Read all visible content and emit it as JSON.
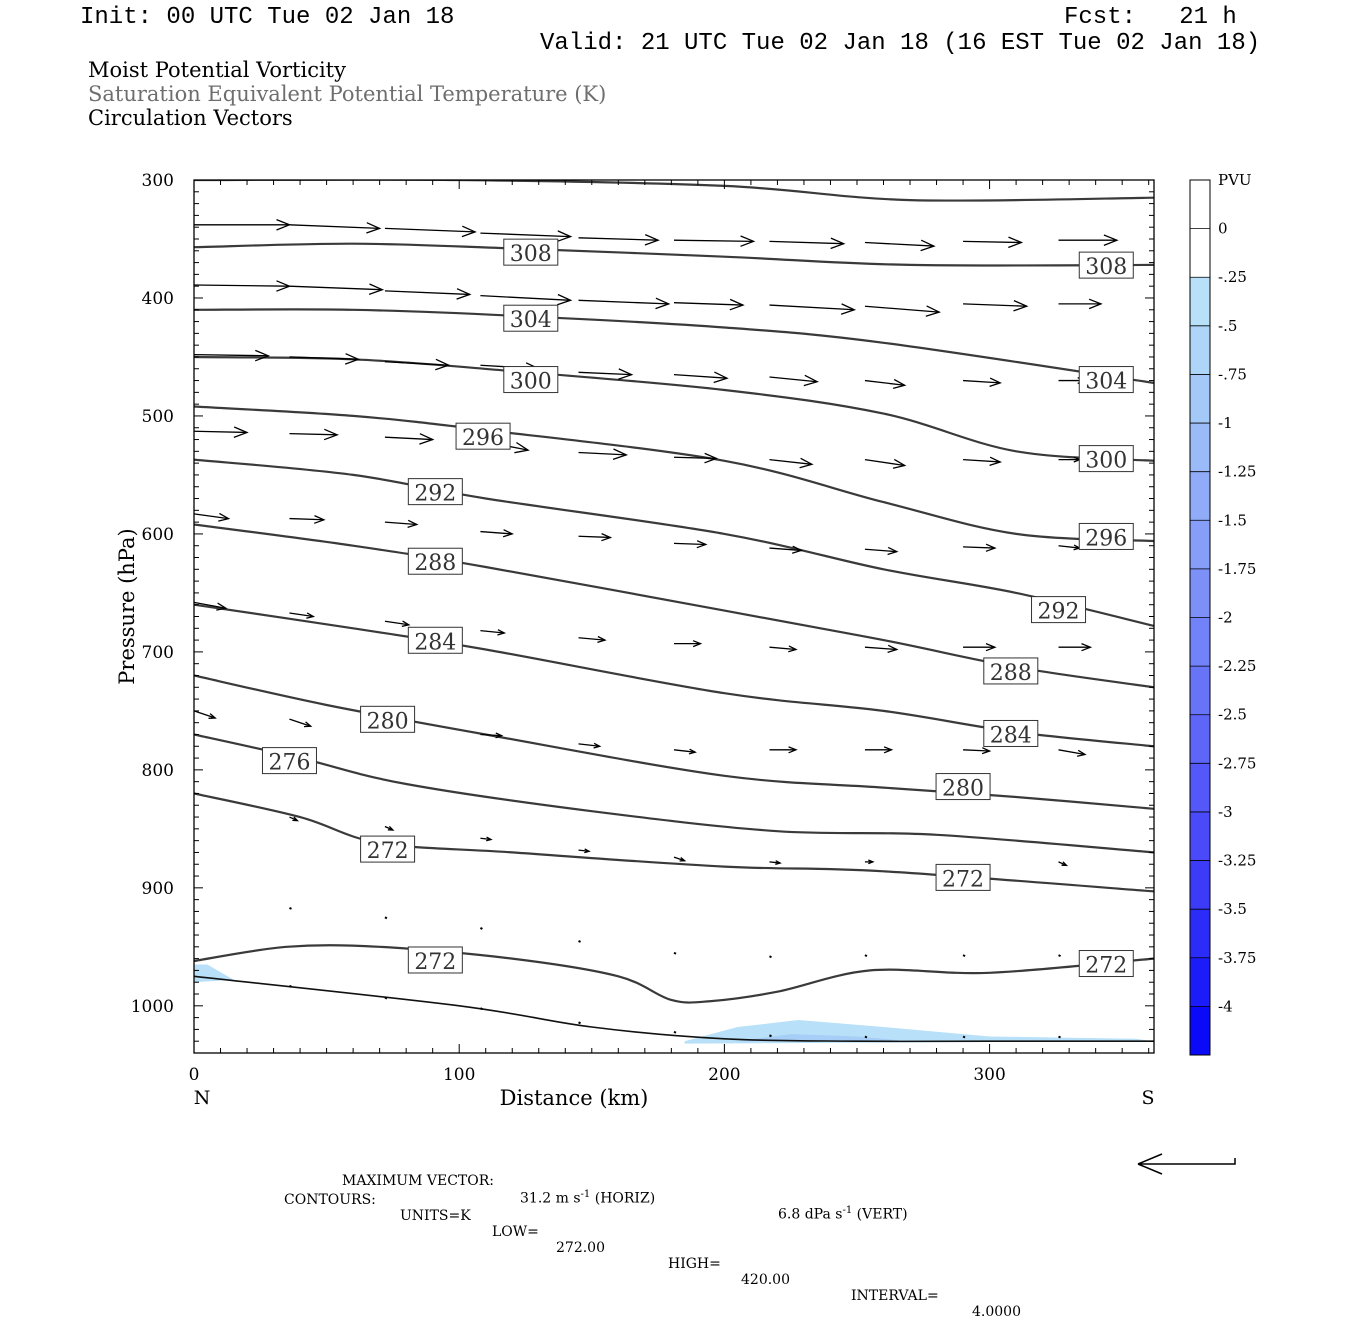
{
  "header": {
    "init": "Init: 00 UTC Tue 02 Jan 18",
    "fcst": "Fcst:   21 h",
    "valid": "Valid: 21 UTC Tue 02 Jan 18 (16 EST Tue 02 Jan 18)"
  },
  "subtitles": [
    "Moist Potential Vorticity",
    "Saturation Equivalent Potential Temperature (K)",
    "Circulation Vectors"
  ],
  "colors": {
    "contour": "#3a3a3a",
    "vector": "#000000",
    "pv_light": "#b8e0f8",
    "pv_mid": "#9ed0f4"
  },
  "chart_data": {
    "type": "cross-section",
    "xlabel": "Distance (km)",
    "ylabel": "Pressure (hPa)",
    "xlim": [
      0,
      362
    ],
    "ylim": [
      1040,
      300
    ],
    "x_ticks": [
      "0",
      "100",
      "200",
      "300"
    ],
    "x_tick_values": [
      0,
      100,
      200,
      300
    ],
    "y_ticks": [
      "300",
      "400",
      "500",
      "600",
      "700",
      "800",
      "900",
      "1000"
    ],
    "y_tick_values": [
      300,
      400,
      500,
      600,
      700,
      800,
      900,
      1000
    ],
    "left_end_label": "N",
    "right_end_label": "S",
    "colorbar": {
      "unit": "PVU",
      "labels": [
        "0",
        "-.25",
        "-.5",
        "-.75",
        "-1",
        "-1.25",
        "-1.5",
        "-1.75",
        "-2",
        "-2.25",
        "-2.5",
        "-2.75",
        "-3",
        "-3.25",
        "-3.5",
        "-3.75",
        "-4"
      ],
      "colors": [
        "#ffffff",
        "#ffffff",
        "#b8e0f8",
        "#aed4f8",
        "#a4c8f8",
        "#9abaf8",
        "#90acf8",
        "#869ef8",
        "#7c90f8",
        "#7282f8",
        "#6874f8",
        "#5e66f8",
        "#5458f8",
        "#4a4af8",
        "#3c3cf8",
        "#2c2cf8",
        "#1c1cf8",
        "#0a0af8"
      ]
    },
    "ground": [
      [
        0,
        975
      ],
      [
        100,
        1000
      ],
      [
        150,
        1018
      ],
      [
        200,
        1028
      ],
      [
        250,
        1030
      ],
      [
        300,
        1030
      ],
      [
        362,
        1030
      ]
    ],
    "contours": [
      {
        "points": [
          [
            0,
            300
          ],
          [
            100,
            300
          ],
          [
            200,
            305
          ],
          [
            270,
            317
          ],
          [
            362,
            315
          ]
        ],
        "labels": []
      },
      {
        "points": [
          [
            0,
            357
          ],
          [
            60,
            354
          ],
          [
            120,
            358
          ],
          [
            200,
            365
          ],
          [
            270,
            372
          ],
          [
            362,
            372
          ]
        ],
        "labels": [
          {
            "text": "308",
            "x": 127,
            "p": 362
          },
          {
            "text": "308",
            "x": 344,
            "p": 373
          }
        ]
      },
      {
        "points": [
          [
            0,
            410
          ],
          [
            60,
            410
          ],
          [
            120,
            415
          ],
          [
            200,
            425
          ],
          [
            260,
            438
          ],
          [
            362,
            472
          ]
        ],
        "labels": [
          {
            "text": "304",
            "x": 127,
            "p": 418
          },
          {
            "text": "304",
            "x": 344,
            "p": 470
          }
        ]
      },
      {
        "points": [
          [
            0,
            450
          ],
          [
            60,
            452
          ],
          [
            120,
            462
          ],
          [
            200,
            478
          ],
          [
            260,
            498
          ],
          [
            310,
            530
          ],
          [
            362,
            538
          ]
        ],
        "labels": [
          {
            "text": "300",
            "x": 127,
            "p": 470
          },
          {
            "text": "300",
            "x": 344,
            "p": 537
          }
        ]
      },
      {
        "points": [
          [
            0,
            492
          ],
          [
            60,
            500
          ],
          [
            110,
            512
          ],
          [
            200,
            538
          ],
          [
            260,
            573
          ],
          [
            310,
            600
          ],
          [
            362,
            606
          ]
        ],
        "labels": [
          {
            "text": "296",
            "x": 109,
            "p": 518
          },
          {
            "text": "296",
            "x": 344,
            "p": 603
          }
        ]
      },
      {
        "points": [
          [
            0,
            537
          ],
          [
            60,
            550
          ],
          [
            110,
            570
          ],
          [
            200,
            600
          ],
          [
            260,
            630
          ],
          [
            310,
            650
          ],
          [
            362,
            678
          ]
        ],
        "labels": [
          {
            "text": "292",
            "x": 91,
            "p": 565
          },
          {
            "text": "292",
            "x": 326,
            "p": 665
          }
        ]
      },
      {
        "points": [
          [
            0,
            592
          ],
          [
            60,
            610
          ],
          [
            110,
            628
          ],
          [
            200,
            665
          ],
          [
            260,
            690
          ],
          [
            310,
            713
          ],
          [
            362,
            730
          ]
        ],
        "labels": [
          {
            "text": "288",
            "x": 91,
            "p": 624
          },
          {
            "text": "288",
            "x": 308,
            "p": 717
          }
        ]
      },
      {
        "points": [
          [
            0,
            660
          ],
          [
            60,
            680
          ],
          [
            110,
            698
          ],
          [
            200,
            735
          ],
          [
            260,
            750
          ],
          [
            310,
            768
          ],
          [
            362,
            780
          ]
        ],
        "labels": [
          {
            "text": "284",
            "x": 91,
            "p": 691
          },
          {
            "text": "284",
            "x": 308,
            "p": 770
          }
        ]
      },
      {
        "points": [
          [
            0,
            720
          ],
          [
            50,
            745
          ],
          [
            110,
            770
          ],
          [
            200,
            805
          ],
          [
            260,
            815
          ],
          [
            310,
            823
          ],
          [
            362,
            833
          ]
        ],
        "labels": [
          {
            "text": "280",
            "x": 73,
            "p": 758
          },
          {
            "text": "280",
            "x": 290,
            "p": 815
          }
        ]
      },
      {
        "points": [
          [
            0,
            770
          ],
          [
            40,
            790
          ],
          [
            80,
            812
          ],
          [
            150,
            835
          ],
          [
            220,
            852
          ],
          [
            280,
            855
          ],
          [
            362,
            870
          ]
        ],
        "labels": [
          {
            "text": "276",
            "x": 36,
            "p": 793
          }
        ]
      },
      {
        "points": [
          [
            0,
            820
          ],
          [
            40,
            840
          ],
          [
            70,
            862
          ],
          [
            120,
            870
          ],
          [
            200,
            882
          ],
          [
            260,
            886
          ],
          [
            362,
            903
          ]
        ],
        "labels": [
          {
            "text": "272",
            "x": 73,
            "p": 868
          },
          {
            "text": "272",
            "x": 290,
            "p": 892
          }
        ]
      },
      {
        "points": [
          [
            0,
            962
          ],
          [
            35,
            950
          ],
          [
            70,
            950
          ],
          [
            120,
            960
          ],
          [
            160,
            975
          ],
          [
            180,
            995
          ],
          [
            195,
            996
          ],
          [
            220,
            988
          ],
          [
            255,
            970
          ],
          [
            300,
            972
          ],
          [
            362,
            960
          ]
        ],
        "labels": [
          {
            "text": "272",
            "x": 91,
            "p": 962
          },
          {
            "text": "272",
            "x": 344,
            "p": 965
          }
        ]
      }
    ],
    "pv_shading": [
      {
        "color": "#b8e0f8",
        "points": [
          [
            0,
            965
          ],
          [
            5,
            965
          ],
          [
            15,
            978
          ],
          [
            0,
            980
          ]
        ]
      },
      {
        "color": "#b8e0f8",
        "points": [
          [
            185,
            1030
          ],
          [
            205,
            1018
          ],
          [
            228,
            1012
          ],
          [
            260,
            1018
          ],
          [
            300,
            1026
          ],
          [
            355,
            1028
          ],
          [
            362,
            1030
          ],
          [
            185,
            1032
          ]
        ]
      },
      {
        "color": "#a6cef6",
        "points": [
          [
            205,
            1030
          ],
          [
            225,
            1024
          ],
          [
            250,
            1026
          ],
          [
            270,
            1030
          ]
        ]
      }
    ],
    "vectors": [
      {
        "x": 0,
        "p": 338,
        "dx": 36,
        "dp": 0
      },
      {
        "x": 36,
        "p": 338,
        "dx": 34,
        "dp": 3
      },
      {
        "x": 72,
        "p": 341,
        "dx": 34,
        "dp": 3
      },
      {
        "x": 108,
        "p": 345,
        "dx": 34,
        "dp": 3
      },
      {
        "x": 145,
        "p": 349,
        "dx": 30,
        "dp": 2
      },
      {
        "x": 181,
        "p": 351,
        "dx": 30,
        "dp": 1
      },
      {
        "x": 217,
        "p": 352,
        "dx": 28,
        "dp": 2
      },
      {
        "x": 253,
        "p": 353,
        "dx": 26,
        "dp": 3
      },
      {
        "x": 290,
        "p": 352,
        "dx": 22,
        "dp": 1
      },
      {
        "x": 326,
        "p": 351,
        "dx": 22,
        "dp": 0
      },
      {
        "x": 0,
        "p": 389,
        "dx": 36,
        "dp": 1
      },
      {
        "x": 36,
        "p": 390,
        "dx": 35,
        "dp": 3
      },
      {
        "x": 72,
        "p": 394,
        "dx": 32,
        "dp": 3
      },
      {
        "x": 108,
        "p": 398,
        "dx": 34,
        "dp": 4
      },
      {
        "x": 145,
        "p": 402,
        "dx": 34,
        "dp": 3
      },
      {
        "x": 181,
        "p": 404,
        "dx": 26,
        "dp": 2
      },
      {
        "x": 217,
        "p": 406,
        "dx": 32,
        "dp": 4
      },
      {
        "x": 253,
        "p": 407,
        "dx": 28,
        "dp": 5
      },
      {
        "x": 290,
        "p": 405,
        "dx": 24,
        "dp": 2
      },
      {
        "x": 326,
        "p": 405,
        "dx": 16,
        "dp": 0
      },
      {
        "x": 0,
        "p": 448,
        "dx": 28,
        "dp": 1
      },
      {
        "x": 36,
        "p": 450,
        "dx": 26,
        "dp": 2
      },
      {
        "x": 72,
        "p": 454,
        "dx": 24,
        "dp": 3
      },
      {
        "x": 108,
        "p": 457,
        "dx": 22,
        "dp": 3
      },
      {
        "x": 145,
        "p": 463,
        "dx": 20,
        "dp": 2
      },
      {
        "x": 181,
        "p": 465,
        "dx": 20,
        "dp": 3
      },
      {
        "x": 217,
        "p": 467,
        "dx": 18,
        "dp": 4
      },
      {
        "x": 253,
        "p": 470,
        "dx": 15,
        "dp": 4
      },
      {
        "x": 290,
        "p": 470,
        "dx": 14,
        "dp": 2
      },
      {
        "x": 326,
        "p": 470,
        "dx": 10,
        "dp": 0
      },
      {
        "x": 0,
        "p": 513,
        "dx": 20,
        "dp": 1
      },
      {
        "x": 36,
        "p": 515,
        "dx": 18,
        "dp": 1
      },
      {
        "x": 72,
        "p": 518,
        "dx": 18,
        "dp": 2
      },
      {
        "x": 108,
        "p": 521,
        "dx": 18,
        "dp": 8
      },
      {
        "x": 145,
        "p": 531,
        "dx": 18,
        "dp": 2
      },
      {
        "x": 181,
        "p": 535,
        "dx": 16,
        "dp": 1
      },
      {
        "x": 217,
        "p": 537,
        "dx": 16,
        "dp": 4
      },
      {
        "x": 253,
        "p": 537,
        "dx": 15,
        "dp": 5
      },
      {
        "x": 290,
        "p": 537,
        "dx": 14,
        "dp": 2
      },
      {
        "x": 326,
        "p": 537,
        "dx": 8,
        "dp": 0
      },
      {
        "x": 0,
        "p": 583,
        "dx": 13,
        "dp": 4
      },
      {
        "x": 36,
        "p": 587,
        "dx": 13,
        "dp": 1
      },
      {
        "x": 72,
        "p": 590,
        "dx": 12,
        "dp": 2
      },
      {
        "x": 108,
        "p": 598,
        "dx": 12,
        "dp": 2
      },
      {
        "x": 145,
        "p": 602,
        "dx": 12,
        "dp": 1
      },
      {
        "x": 181,
        "p": 608,
        "dx": 12,
        "dp": 1
      },
      {
        "x": 217,
        "p": 612,
        "dx": 12,
        "dp": 2
      },
      {
        "x": 253,
        "p": 613,
        "dx": 12,
        "dp": 2
      },
      {
        "x": 290,
        "p": 611,
        "dx": 12,
        "dp": 1
      },
      {
        "x": 326,
        "p": 610,
        "dx": 8,
        "dp": 2
      },
      {
        "x": 0,
        "p": 658,
        "dx": 12,
        "dp": 5
      },
      {
        "x": 36,
        "p": 667,
        "dx": 9,
        "dp": 3
      },
      {
        "x": 72,
        "p": 674,
        "dx": 9,
        "dp": 3
      },
      {
        "x": 108,
        "p": 682,
        "dx": 9,
        "dp": 2
      },
      {
        "x": 145,
        "p": 688,
        "dx": 10,
        "dp": 2
      },
      {
        "x": 181,
        "p": 693,
        "dx": 10,
        "dp": 0
      },
      {
        "x": 217,
        "p": 696,
        "dx": 10,
        "dp": 2
      },
      {
        "x": 253,
        "p": 696,
        "dx": 12,
        "dp": 2
      },
      {
        "x": 290,
        "p": 696,
        "dx": 12,
        "dp": 0
      },
      {
        "x": 326,
        "p": 696,
        "dx": 12,
        "dp": 0
      },
      {
        "x": 0,
        "p": 750,
        "dx": 8,
        "dp": 6
      },
      {
        "x": 36,
        "p": 757,
        "dx": 8,
        "dp": 6
      },
      {
        "x": 72,
        "p": 765,
        "dx": 4,
        "dp": 2
      },
      {
        "x": 108,
        "p": 770,
        "dx": 8,
        "dp": 1
      },
      {
        "x": 145,
        "p": 778,
        "dx": 8,
        "dp": 2
      },
      {
        "x": 181,
        "p": 783,
        "dx": 8,
        "dp": 2
      },
      {
        "x": 217,
        "p": 783,
        "dx": 10,
        "dp": 0
      },
      {
        "x": 253,
        "p": 783,
        "dx": 10,
        "dp": 0
      },
      {
        "x": 290,
        "p": 783,
        "dx": 10,
        "dp": 1
      },
      {
        "x": 326,
        "p": 783,
        "dx": 10,
        "dp": 4
      },
      {
        "x": 36,
        "p": 840,
        "dx": 3,
        "dp": 3
      },
      {
        "x": 72,
        "p": 848,
        "dx": 3,
        "dp": 3
      },
      {
        "x": 108,
        "p": 858,
        "dx": 4,
        "dp": 1
      },
      {
        "x": 145,
        "p": 868,
        "dx": 4,
        "dp": 1
      },
      {
        "x": 181,
        "p": 874,
        "dx": 4,
        "dp": 3
      },
      {
        "x": 217,
        "p": 878,
        "dx": 4,
        "dp": 1
      },
      {
        "x": 253,
        "p": 878,
        "dx": 3,
        "dp": 0
      },
      {
        "x": 326,
        "p": 878,
        "dx": 3,
        "dp": 3
      },
      {
        "x": 36,
        "p": 917,
        "dx": 1,
        "dp": -2
      },
      {
        "x": 72,
        "p": 925,
        "dx": 1,
        "dp": -2
      },
      {
        "x": 108,
        "p": 934,
        "dx": 1,
        "dp": 0
      },
      {
        "x": 145,
        "p": 945,
        "dx": 1,
        "dp": -1
      },
      {
        "x": 181,
        "p": 955,
        "dx": 1,
        "dp": -1
      },
      {
        "x": 217,
        "p": 958,
        "dx": 1,
        "dp": -1
      },
      {
        "x": 253,
        "p": 957,
        "dx": 1,
        "dp": 0
      },
      {
        "x": 290,
        "p": 957,
        "dx": 1,
        "dp": 1
      },
      {
        "x": 326,
        "p": 957,
        "dx": 1,
        "dp": 2
      },
      {
        "x": 36,
        "p": 983,
        "dx": 1,
        "dp": 0
      },
      {
        "x": 72,
        "p": 993,
        "dx": 1,
        "dp": 0
      },
      {
        "x": 108,
        "p": 1002,
        "dx": 1,
        "dp": 0
      },
      {
        "x": 145,
        "p": 1014,
        "dx": 1,
        "dp": 0
      },
      {
        "x": 181,
        "p": 1022,
        "dx": 1,
        "dp": 0
      },
      {
        "x": 217,
        "p": 1025,
        "dx": 1,
        "dp": 0
      },
      {
        "x": 253,
        "p": 1026,
        "dx": 1,
        "dp": 0
      },
      {
        "x": 290,
        "p": 1026,
        "dx": 1,
        "dp": 0
      },
      {
        "x": 326,
        "p": 1026,
        "dx": 1,
        "dp": 0
      }
    ]
  },
  "footer": {
    "max_vector_label": "MAXIMUM VECTOR:",
    "horiz_value": "31.2 m s",
    "horiz_exp": "-1",
    "horiz_tag": " (HORIZ)",
    "vert_value": "6.8 dPa s",
    "vert_exp": "-1",
    "vert_tag": " (VERT)",
    "contours_label": "CONTOURS:",
    "units": "UNITS=K",
    "low_label": "LOW=",
    "low": "272.00",
    "high_label": "HIGH=",
    "high": "420.00",
    "interval_label": "INTERVAL=",
    "interval": "4.0000"
  }
}
